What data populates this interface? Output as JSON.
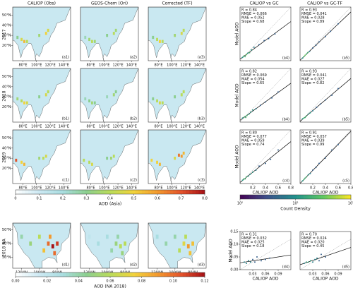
{
  "columns": [
    "CALIOP (Obs)",
    "GEOS-Chem (Ori)",
    "Corrected (TF)",
    "CALIOP vs GC",
    "CALIOP vs GC-TF"
  ],
  "rows": [
    "2017",
    "2018",
    "2019",
    "2018 NA"
  ],
  "asia_maps": {
    "xlim": [
      65,
      150
    ],
    "ylim": [
      5,
      58
    ],
    "xticks": [
      {
        "value": 80,
        "label": "80°E"
      },
      {
        "value": 100,
        "label": "100°E"
      },
      {
        "value": 120,
        "label": "120°E"
      },
      {
        "value": 140,
        "label": "140°E"
      }
    ],
    "yticks": [
      {
        "value": 20,
        "label": "20°N"
      },
      {
        "value": 30,
        "label": "30°N"
      },
      {
        "value": 40,
        "label": "40°N"
      },
      {
        "value": 50,
        "label": "50°N"
      }
    ],
    "panels": [
      {
        "label": "(a1)",
        "cells": [
          [
            78,
            26,
            0.45
          ],
          [
            82,
            24,
            0.55
          ],
          [
            86,
            24,
            0.4
          ],
          [
            114,
            32,
            0.5
          ],
          [
            117,
            35,
            0.45
          ],
          [
            104,
            30,
            0.35
          ],
          [
            72,
            28,
            0.3
          ]
        ]
      },
      {
        "label": "(a2)",
        "cells": [
          [
            78,
            26,
            0.35
          ],
          [
            82,
            24,
            0.4
          ],
          [
            86,
            24,
            0.35
          ],
          [
            114,
            32,
            0.4
          ],
          [
            117,
            35,
            0.35
          ],
          [
            104,
            30,
            0.3
          ],
          [
            72,
            28,
            0.25
          ]
        ]
      },
      {
        "label": "(a3)",
        "cells": [
          [
            78,
            26,
            0.4
          ],
          [
            82,
            24,
            0.5
          ],
          [
            86,
            24,
            0.4
          ],
          [
            114,
            32,
            0.45
          ],
          [
            117,
            35,
            0.4
          ],
          [
            104,
            30,
            0.35
          ],
          [
            72,
            28,
            0.3
          ]
        ]
      },
      {
        "label": "(b1)",
        "cells": [
          [
            78,
            26,
            0.4
          ],
          [
            82,
            24,
            0.5
          ],
          [
            86,
            24,
            0.45
          ],
          [
            114,
            32,
            0.45
          ],
          [
            117,
            35,
            0.4
          ],
          [
            104,
            30,
            0.3
          ],
          [
            72,
            28,
            0.35
          ]
        ]
      },
      {
        "label": "(b2)",
        "cells": [
          [
            78,
            26,
            0.3
          ],
          [
            82,
            24,
            0.35
          ],
          [
            86,
            24,
            0.3
          ],
          [
            114,
            32,
            0.35
          ],
          [
            117,
            35,
            0.3
          ],
          [
            104,
            30,
            0.25
          ],
          [
            72,
            28,
            0.25
          ]
        ]
      },
      {
        "label": "(b3)",
        "cells": [
          [
            78,
            26,
            0.4
          ],
          [
            82,
            24,
            0.45
          ],
          [
            86,
            24,
            0.4
          ],
          [
            114,
            32,
            0.4
          ],
          [
            117,
            35,
            0.4
          ],
          [
            104,
            30,
            0.3
          ],
          [
            72,
            28,
            0.3
          ]
        ]
      },
      {
        "label": "(c1)",
        "cells": [
          [
            70,
            28,
            0.7
          ],
          [
            78,
            26,
            0.5
          ],
          [
            82,
            24,
            0.55
          ],
          [
            114,
            32,
            0.45
          ],
          [
            110,
            30,
            0.4
          ],
          [
            104,
            30,
            0.35
          ]
        ]
      },
      {
        "label": "(c2)",
        "cells": [
          [
            70,
            28,
            0.4
          ],
          [
            78,
            26,
            0.4
          ],
          [
            82,
            24,
            0.45
          ],
          [
            114,
            32,
            0.4
          ],
          [
            110,
            30,
            0.35
          ],
          [
            104,
            30,
            0.3
          ]
        ]
      },
      {
        "label": "(c3)",
        "cells": [
          [
            70,
            28,
            0.5
          ],
          [
            78,
            26,
            0.5
          ],
          [
            82,
            24,
            0.55
          ],
          [
            114,
            32,
            0.6
          ],
          [
            110,
            33,
            0.65
          ],
          [
            117,
            35,
            0.55
          ],
          [
            104,
            30,
            0.45
          ]
        ]
      }
    ]
  },
  "asia_colorbar": {
    "label": "AOD (Asia)",
    "lim": [
      0,
      0.8
    ],
    "ticks": [
      0,
      0.1,
      0.2,
      0.3,
      0.4,
      0.5,
      0.6,
      0.7,
      0.8
    ],
    "colors": [
      "#ffffff",
      "#cde9f3",
      "#a9dde0",
      "#8ccf8f",
      "#b9dc5a",
      "#f2d33c",
      "#f39a2e",
      "#e3532b",
      "#a50f15"
    ]
  },
  "na_maps": {
    "xlim": [
      -130,
      -65
    ],
    "ylim": [
      22,
      55
    ],
    "xticks": [
      {
        "value": -120,
        "label": "120°W"
      },
      {
        "value": -100,
        "label": "100°W"
      },
      {
        "value": -80,
        "label": "80°W"
      }
    ],
    "yticks": [
      {
        "value": 30,
        "label": "30°N"
      },
      {
        "value": 40,
        "label": "40°N"
      },
      {
        "value": 50,
        "label": "50°N"
      }
    ],
    "panels": [
      {
        "label": "(d1)",
        "cells": [
          [
            -90,
            40,
            0.1
          ],
          [
            -85,
            38,
            0.12
          ],
          [
            -80,
            40,
            0.11
          ],
          [
            -95,
            35,
            0.08
          ],
          [
            -100,
            45,
            0.06
          ],
          [
            -110,
            40,
            0.05
          ],
          [
            -88,
            45,
            0.09
          ],
          [
            -83,
            33,
            0.1
          ],
          [
            -120,
            45,
            0.04
          ]
        ]
      },
      {
        "label": "(d2)",
        "cells": [
          [
            -90,
            40,
            0.05
          ],
          [
            -85,
            38,
            0.06
          ],
          [
            -80,
            40,
            0.06
          ],
          [
            -95,
            35,
            0.04
          ],
          [
            -100,
            45,
            0.03
          ],
          [
            -110,
            40,
            0.03
          ],
          [
            -88,
            45,
            0.04
          ],
          [
            -83,
            33,
            0.05
          ],
          [
            -120,
            45,
            0.02
          ]
        ]
      },
      {
        "label": "(d3)",
        "cells": [
          [
            -90,
            40,
            0.07
          ],
          [
            -85,
            38,
            0.09
          ],
          [
            -80,
            40,
            0.08
          ],
          [
            -95,
            35,
            0.06
          ],
          [
            -100,
            45,
            0.04
          ],
          [
            -110,
            40,
            0.04
          ],
          [
            -88,
            45,
            0.06
          ],
          [
            -83,
            33,
            0.08
          ],
          [
            -120,
            45,
            0.03
          ]
        ]
      }
    ]
  },
  "na_colorbar": {
    "label": "AOD (NA 2018)",
    "lim": [
      0,
      0.12
    ],
    "ticks": [
      {
        "value": 0,
        "label": "0.00"
      },
      0.02,
      0.04,
      0.06,
      0.08,
      {
        "value": 0.1,
        "label": "0.10"
      },
      0.12
    ],
    "colors": [
      "#ffffff",
      "#cde9f3",
      "#a9dde0",
      "#8ccf8f",
      "#b9dc5a",
      "#f2d33c",
      "#f39a2e",
      "#e3532b",
      "#a50f15"
    ]
  },
  "scatter": {
    "xlabel": "CALIOP AOD",
    "ylabel": "Model AOD",
    "xlim": [
      0,
      0.8
    ],
    "ylim": [
      0,
      0.8
    ],
    "xticks": [
      0.2,
      0.4,
      0.6,
      0.8
    ],
    "panels": [
      {
        "label": "(a4)",
        "stats": [
          "R = 0.84",
          "RMSE = 0.066",
          "MAE = 0.052",
          "Slope = 0.68"
        ],
        "points": [
          [
            0.04,
            0.05
          ],
          [
            0.06,
            0.07
          ],
          [
            0.08,
            0.06
          ],
          [
            0.1,
            0.09
          ],
          [
            0.12,
            0.11
          ],
          [
            0.15,
            0.12
          ],
          [
            0.18,
            0.16
          ],
          [
            0.22,
            0.2
          ],
          [
            0.3,
            0.24
          ],
          [
            0.38,
            0.3
          ],
          [
            0.45,
            0.33
          ],
          [
            0.55,
            0.4
          ]
        ]
      },
      {
        "label": "(a5)",
        "stats": [
          "R = 0.93",
          "RMSE = 0.041",
          "MAE = 0.028",
          "Slope = 0.89"
        ],
        "points": [
          [
            0.04,
            0.04
          ],
          [
            0.06,
            0.06
          ],
          [
            0.08,
            0.08
          ],
          [
            0.1,
            0.1
          ],
          [
            0.12,
            0.12
          ],
          [
            0.15,
            0.14
          ],
          [
            0.2,
            0.19
          ],
          [
            0.25,
            0.23
          ],
          [
            0.3,
            0.28
          ],
          [
            0.4,
            0.36
          ],
          [
            0.48,
            0.44
          ],
          [
            0.6,
            0.55
          ]
        ]
      },
      {
        "label": "(b4)",
        "stats": [
          "R = 0.82",
          "RMSE = 0.069",
          "MAE = 0.054",
          "Slope = 0.65"
        ],
        "points": [
          [
            0.04,
            0.06
          ],
          [
            0.07,
            0.08
          ],
          [
            0.09,
            0.07
          ],
          [
            0.11,
            0.1
          ],
          [
            0.14,
            0.12
          ],
          [
            0.17,
            0.15
          ],
          [
            0.2,
            0.18
          ],
          [
            0.25,
            0.2
          ],
          [
            0.32,
            0.25
          ],
          [
            0.4,
            0.3
          ],
          [
            0.5,
            0.36
          ],
          [
            0.6,
            0.45
          ]
        ]
      },
      {
        "label": "(b5)",
        "stats": [
          "R = 0.93",
          "RMSE = 0.041",
          "MAE = 0.027",
          "Slope = 0.82"
        ],
        "points": [
          [
            0.04,
            0.05
          ],
          [
            0.06,
            0.06
          ],
          [
            0.08,
            0.07
          ],
          [
            0.1,
            0.09
          ],
          [
            0.13,
            0.12
          ],
          [
            0.16,
            0.14
          ],
          [
            0.2,
            0.17
          ],
          [
            0.26,
            0.22
          ],
          [
            0.32,
            0.27
          ],
          [
            0.4,
            0.33
          ],
          [
            0.5,
            0.4
          ],
          [
            0.6,
            0.5
          ]
        ]
      },
      {
        "label": "(c4)",
        "stats": [
          "R = 0.80",
          "RMSE = 0.077",
          "MAE = 0.059",
          "Slope = 0.74"
        ],
        "points": [
          [
            0.04,
            0.05
          ],
          [
            0.06,
            0.07
          ],
          [
            0.08,
            0.07
          ],
          [
            0.1,
            0.1
          ],
          [
            0.13,
            0.11
          ],
          [
            0.16,
            0.14
          ],
          [
            0.2,
            0.17
          ],
          [
            0.25,
            0.2
          ],
          [
            0.3,
            0.26
          ],
          [
            0.4,
            0.3
          ],
          [
            0.48,
            0.36
          ],
          [
            0.6,
            0.5
          ]
        ]
      },
      {
        "label": "(c5)",
        "stats": [
          "R = 0.91",
          "RMSE = 0.057",
          "MAE = 0.039",
          "Slope = 0.99"
        ],
        "points": [
          [
            0.04,
            0.04
          ],
          [
            0.06,
            0.06
          ],
          [
            0.08,
            0.08
          ],
          [
            0.1,
            0.1
          ],
          [
            0.13,
            0.13
          ],
          [
            0.16,
            0.15
          ],
          [
            0.2,
            0.2
          ],
          [
            0.25,
            0.24
          ],
          [
            0.3,
            0.3
          ],
          [
            0.4,
            0.38
          ],
          [
            0.5,
            0.5
          ],
          [
            0.6,
            0.58
          ]
        ]
      }
    ]
  },
  "density_colorbar": {
    "label": "Count Density",
    "lim": [
      1,
      100
    ],
    "log": true,
    "ticks": [
      {
        "value": 1,
        "label": "10⁰"
      },
      {
        "value": 10,
        "label": "10¹"
      },
      {
        "value": 100,
        "label": "10²"
      }
    ],
    "colors": [
      "#440154",
      "#3b528b",
      "#21918c",
      "#5ec962",
      "#fde725"
    ]
  },
  "na_scatter": {
    "xlabel": "CALIOP AOD",
    "ylabel": "Model AOD",
    "xlim": [
      0,
      0.12
    ],
    "ylim": [
      0,
      0.15
    ],
    "xticks": [
      0.03,
      0.06,
      0.09
    ],
    "yticks": [
      {
        "value": 0,
        "label": "0.00"
      },
      0.05,
      {
        "value": 0.1,
        "label": "0.10"
      },
      0.15
    ],
    "panels": [
      {
        "label": "(d4)",
        "stats": [
          "R = 0.31",
          "RMSE = 0.032",
          "MAE = 0.025",
          "Slope = 0.18"
        ],
        "points": [
          [
            0.01,
            0.03
          ],
          [
            0.015,
            0.025
          ],
          [
            0.02,
            0.035
          ],
          [
            0.025,
            0.03
          ],
          [
            0.03,
            0.04
          ],
          [
            0.035,
            0.03
          ],
          [
            0.04,
            0.05
          ],
          [
            0.05,
            0.035
          ],
          [
            0.06,
            0.04
          ],
          [
            0.07,
            0.045
          ]
        ]
      },
      {
        "label": "(d5)",
        "stats": [
          "R = 0.70",
          "RMSE = 0.024",
          "MAE = 0.020",
          "Slope = 0.45"
        ],
        "points": [
          [
            0.01,
            0.025
          ],
          [
            0.015,
            0.03
          ],
          [
            0.02,
            0.03
          ],
          [
            0.025,
            0.035
          ],
          [
            0.03,
            0.03
          ],
          [
            0.035,
            0.04
          ],
          [
            0.04,
            0.045
          ],
          [
            0.045,
            0.035
          ],
          [
            0.05,
            0.06
          ],
          [
            0.06,
            0.05
          ]
        ]
      }
    ]
  }
}
